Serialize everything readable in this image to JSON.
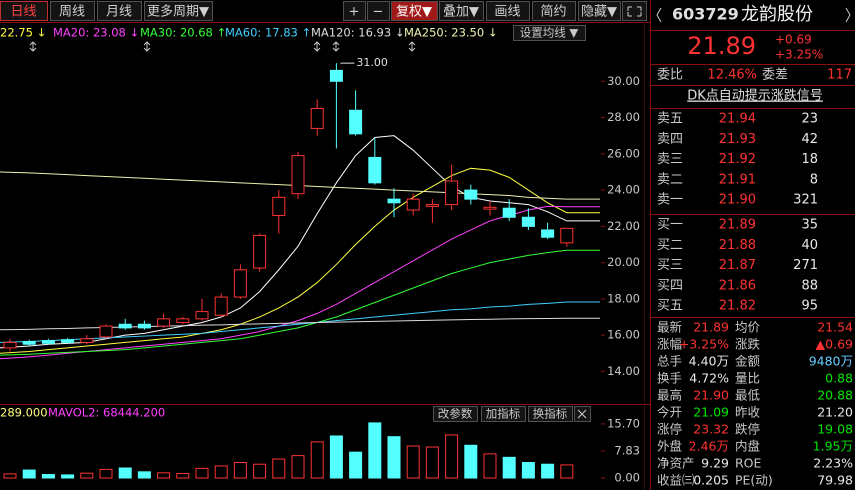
{
  "toolbar": {
    "buttons": [
      "日线",
      "周线",
      "月线",
      "更多周期▼",
      "+",
      "−",
      "复权▼",
      "叠加▼",
      "画线",
      "简约",
      "隐藏▼"
    ]
  },
  "ma_button": "设置均线 ▼",
  "chart_data": {
    "type": "candlestick",
    "up_color": "#ff3232",
    "down_color": "#54ffff",
    "open": [
      15.3,
      15.65,
      15.7,
      15.75,
      15.6,
      15.9,
      16.6,
      16.6,
      16.5,
      16.7,
      16.9,
      17.1,
      18.1,
      19.7,
      22.6,
      23.8,
      27.4,
      30.6,
      28.4,
      25.8,
      23.5,
      22.9,
      23.1,
      23.2,
      24.0,
      22.95,
      23.0,
      22.5,
      21.8,
      21.09
    ],
    "high": [
      15.8,
      15.75,
      15.8,
      15.85,
      16.0,
      16.6,
      16.9,
      16.8,
      17.2,
      17.0,
      18.0,
      18.3,
      19.9,
      21.6,
      24.0,
      26.1,
      29.0,
      31.0,
      29.5,
      26.9,
      24.1,
      23.8,
      23.5,
      25.4,
      24.3,
      23.4,
      23.5,
      23.0,
      22.2,
      21.9
    ],
    "low": [
      15.1,
      15.4,
      15.5,
      15.55,
      15.5,
      15.8,
      16.3,
      16.3,
      16.4,
      16.6,
      16.8,
      17.0,
      18.0,
      19.5,
      21.6,
      23.5,
      27.0,
      26.3,
      27.0,
      24.3,
      22.5,
      22.6,
      22.2,
      22.9,
      23.2,
      22.6,
      22.3,
      21.8,
      21.3,
      20.88
    ],
    "close": [
      15.6,
      15.5,
      15.55,
      15.6,
      15.8,
      16.5,
      16.4,
      16.4,
      16.9,
      16.9,
      17.3,
      18.1,
      19.6,
      21.5,
      23.6,
      25.9,
      28.5,
      30.0,
      27.1,
      24.4,
      23.3,
      23.5,
      23.2,
      24.5,
      23.5,
      23.05,
      22.5,
      22.0,
      21.4,
      21.89
    ],
    "ylim": [
      12.7,
      32.0
    ],
    "yticks": [
      {
        "value": 14,
        "label": "14.00"
      },
      {
        "value": 16,
        "label": "16.00"
      },
      {
        "value": 18,
        "label": "18.00"
      },
      {
        "value": 20,
        "label": "20.00"
      },
      {
        "value": 22,
        "label": "22.00"
      },
      {
        "value": 24,
        "label": "24.00"
      },
      {
        "value": 26,
        "label": "26.00"
      },
      {
        "value": 28,
        "label": "28.00"
      },
      {
        "value": 30,
        "label": "30.00"
      }
    ],
    "annotation": {
      "value": 31.0,
      "label": "31.00"
    },
    "ma": [
      {
        "color": "#ffffff",
        "values": [
          15.3,
          15.4,
          15.5,
          15.55,
          15.6,
          15.8,
          16.0,
          16.1,
          16.3,
          16.5,
          16.7,
          17.0,
          17.5,
          18.4,
          19.6,
          20.9,
          22.7,
          24.4,
          25.9,
          26.9,
          27.0,
          26.2,
          25.2,
          24.2,
          23.6,
          23.4,
          23.3,
          23.2,
          22.8,
          22.3
        ]
      },
      {
        "color": "#ffff40",
        "label": "22.75 ↓",
        "values": [
          15.0,
          15.1,
          15.2,
          15.3,
          15.4,
          15.5,
          15.6,
          15.7,
          15.8,
          15.9,
          16.1,
          16.3,
          16.6,
          17.0,
          17.5,
          18.1,
          18.9,
          19.9,
          21.0,
          22.0,
          22.9,
          23.6,
          24.2,
          24.8,
          25.2,
          25.1,
          24.7,
          24.0,
          23.3,
          22.75
        ]
      },
      {
        "color": "#ff40ff",
        "label": "MA20: 23.08 ↓",
        "values": [
          14.7,
          14.8,
          14.9,
          15.0,
          15.1,
          15.2,
          15.3,
          15.4,
          15.5,
          15.6,
          15.7,
          15.8,
          16.0,
          16.2,
          16.5,
          16.8,
          17.2,
          17.7,
          18.3,
          18.9,
          19.5,
          20.1,
          20.7,
          21.3,
          21.8,
          22.3,
          22.6,
          22.9,
          23.1,
          23.08
        ]
      },
      {
        "color": "#33ff33",
        "label": "MA30: 20.68 ↑",
        "values": [
          14.9,
          14.95,
          15.0,
          15.05,
          15.1,
          15.15,
          15.2,
          15.3,
          15.4,
          15.5,
          15.6,
          15.7,
          15.8,
          16.0,
          16.2,
          16.4,
          16.7,
          17.0,
          17.4,
          17.8,
          18.2,
          18.6,
          19.0,
          19.4,
          19.7,
          20.0,
          20.2,
          20.4,
          20.55,
          20.68
        ]
      },
      {
        "color": "#40d0ff",
        "label": "MA60: 17.83 ↑",
        "values": [
          15.6,
          15.65,
          15.7,
          15.75,
          15.8,
          15.85,
          15.9,
          15.95,
          16.0,
          16.05,
          16.1,
          16.2,
          16.3,
          16.4,
          16.5,
          16.6,
          16.7,
          16.8,
          16.9,
          17.0,
          17.1,
          17.2,
          17.3,
          17.4,
          17.45,
          17.55,
          17.6,
          17.7,
          17.75,
          17.83
        ]
      },
      {
        "color": "#dcdcdc",
        "label": "MA120: 16.93 ↓",
        "values": [
          16.3,
          16.32,
          16.35,
          16.37,
          16.4,
          16.42,
          16.45,
          16.47,
          16.5,
          16.52,
          16.55,
          16.57,
          16.6,
          16.62,
          16.65,
          16.67,
          16.7,
          16.72,
          16.74,
          16.76,
          16.78,
          16.8,
          16.82,
          16.84,
          16.86,
          16.88,
          16.9,
          16.91,
          16.92,
          16.93
        ]
      },
      {
        "color": "#f0f0b0",
        "label": "MA250: 23.50 ↓",
        "values": [
          25.0,
          24.95,
          24.9,
          24.85,
          24.8,
          24.75,
          24.7,
          24.65,
          24.6,
          24.55,
          24.5,
          24.45,
          24.4,
          24.35,
          24.3,
          24.25,
          24.2,
          24.15,
          24.1,
          24.05,
          24.0,
          23.95,
          23.9,
          23.85,
          23.8,
          23.75,
          23.7,
          23.6,
          23.55,
          23.5
        ]
      }
    ],
    "volume": {
      "values": [
        1.2,
        2.3,
        1.0,
        0.9,
        1.4,
        2.5,
        2.9,
        1.8,
        1.5,
        1.3,
        2.8,
        3.5,
        4.5,
        4.0,
        5.5,
        6.5,
        10.5,
        12.2,
        7.5,
        16.0,
        12.0,
        9.3,
        9.0,
        12.5,
        9.5,
        7.0,
        6.0,
        4.5,
        4.0,
        3.8
      ],
      "ylim": [
        0,
        21.2
      ],
      "yticks": [
        {
          "value": 0,
          "label": "0.00"
        },
        {
          "value": 7.83,
          "label": "7.83"
        },
        {
          "value": 15.7,
          "label": "15.70"
        }
      ],
      "labels": [
        {
          "text": "289.000",
          "color": "#ffff80"
        },
        {
          "text": "MAVOL2: 68444.200",
          "color": "#ff40ff"
        }
      ],
      "buttons": [
        "改参数",
        "加指标",
        "换指标"
      ]
    }
  },
  "quote": {
    "code": "603729",
    "name": "龙韵股份",
    "price": "21.89",
    "change": "+0.69",
    "change_pct": "+3.25%"
  },
  "ratio": [
    "委比",
    "12.46%",
    "委差",
    "117"
  ],
  "signal": "DK点自动提示涨跌信号",
  "sell": [
    [
      "卖五",
      "21.94",
      "23"
    ],
    [
      "卖四",
      "21.93",
      "42"
    ],
    [
      "卖三",
      "21.92",
      "18"
    ],
    [
      "卖二",
      "21.91",
      "8"
    ],
    [
      "卖一",
      "21.90",
      "321"
    ]
  ],
  "buy": [
    [
      "买一",
      "21.89",
      "35"
    ],
    [
      "买二",
      "21.88",
      "40"
    ],
    [
      "买三",
      "21.87",
      "271"
    ],
    [
      "买四",
      "21.86",
      "88"
    ],
    [
      "买五",
      "21.82",
      "95"
    ]
  ],
  "stats": [
    [
      "最新",
      "21.89",
      "均价",
      "21.54"
    ],
    [
      "涨幅",
      "+3.25%",
      "涨跌",
      "▲0.69"
    ],
    [
      "总手",
      "4.40万",
      "金额",
      "9480万"
    ],
    [
      "换手",
      "4.72%",
      "量比",
      "0.88"
    ],
    [
      "最高",
      "21.90",
      "最低",
      "20.88"
    ],
    [
      "今开",
      "21.09",
      "昨收",
      "21.20"
    ],
    [
      "涨停",
      "23.32",
      "跌停",
      "19.08"
    ],
    [
      "外盘",
      "2.46万",
      "内盘",
      "1.95万"
    ],
    [
      "净资产",
      "9.29",
      "ROE",
      "2.23%"
    ],
    [
      "收益㈢",
      "0.205",
      "PE(动)",
      "79.98"
    ]
  ],
  "stats_colors": [
    [
      "#ff3232",
      "#ff3232"
    ],
    [
      "#ff3232",
      "#ff3232"
    ],
    [
      "#e8e8e8",
      "#66ccff"
    ],
    [
      "#e8e8e8",
      "#00e600"
    ],
    [
      "#ff3232",
      "#00e600"
    ],
    [
      "#00e600",
      "#e8e8e8"
    ],
    [
      "#ff3232",
      "#00e600"
    ],
    [
      "#ff3232",
      "#00e600"
    ],
    [
      "#e8e8e8",
      "#e8e8e8"
    ],
    [
      "#e8e8e8",
      "#e8e8e8"
    ]
  ]
}
